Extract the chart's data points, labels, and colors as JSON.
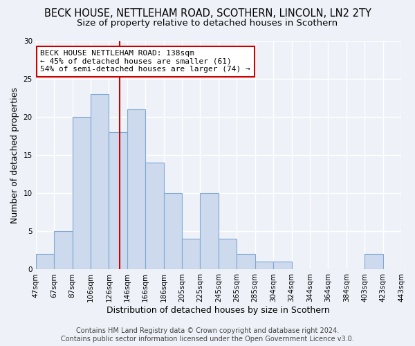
{
  "title1": "BECK HOUSE, NETTLEHAM ROAD, SCOTHERN, LINCOLN, LN2 2TY",
  "title2": "Size of property relative to detached houses in Scothern",
  "xlabel": "Distribution of detached houses by size in Scothern",
  "ylabel": "Number of detached properties",
  "bin_labels": [
    "47sqm",
    "67sqm",
    "87sqm",
    "106sqm",
    "126sqm",
    "146sqm",
    "166sqm",
    "186sqm",
    "205sqm",
    "225sqm",
    "245sqm",
    "265sqm",
    "285sqm",
    "304sqm",
    "324sqm",
    "344sqm",
    "364sqm",
    "384sqm",
    "403sqm",
    "423sqm",
    "443sqm"
  ],
  "bar_heights": [
    2,
    5,
    20,
    23,
    18,
    21,
    14,
    10,
    4,
    10,
    4,
    2,
    1,
    1,
    0,
    0,
    0,
    0,
    2,
    0,
    0
  ],
  "bar_color": "#cdd9ed",
  "bar_edgecolor": "#7fa8d4",
  "bar_linewidth": 0.8,
  "red_line_bin": 5,
  "red_line_color": "#cc0000",
  "annotation_text": "BECK HOUSE NETTLEHAM ROAD: 138sqm\n← 45% of detached houses are smaller (61)\n54% of semi-detached houses are larger (74) →",
  "annotation_box_color": "#ffffff",
  "annotation_box_edgecolor": "#cc0000",
  "ylim": [
    0,
    30
  ],
  "yticks": [
    0,
    5,
    10,
    15,
    20,
    25,
    30
  ],
  "footer_text": "Contains HM Land Registry data © Crown copyright and database right 2024.\nContains public sector information licensed under the Open Government Licence v3.0.",
  "background_color": "#eef2f8",
  "plot_bg_color": "#eef2f8",
  "grid_color": "#ffffff",
  "title1_fontsize": 10.5,
  "title2_fontsize": 9.5,
  "xlabel_fontsize": 9,
  "ylabel_fontsize": 9,
  "tick_fontsize": 7.5,
  "footer_fontsize": 7,
  "annotation_fontsize": 8
}
